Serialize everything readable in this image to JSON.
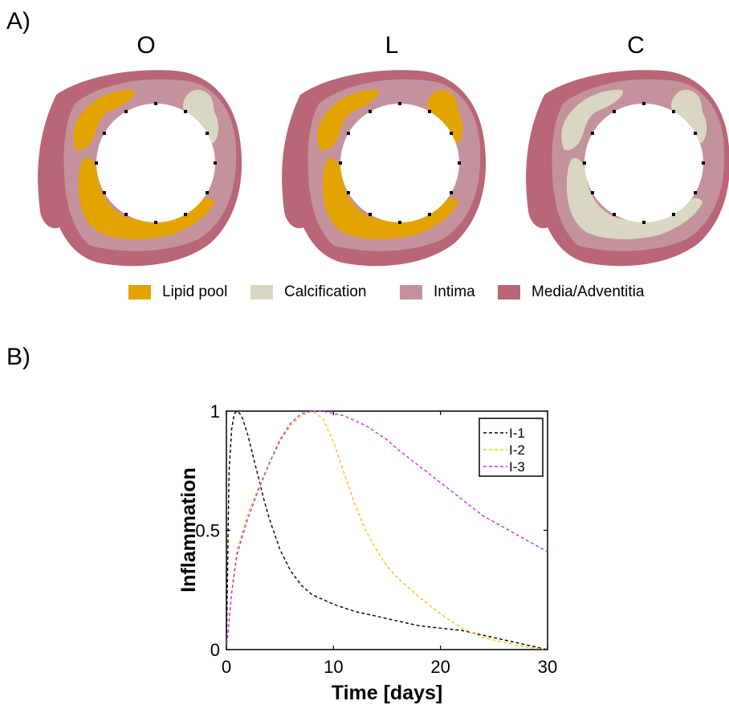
{
  "figure": {
    "panel_a_label": "A)",
    "panel_b_label": "B)"
  },
  "panel_a": {
    "vessels": [
      {
        "title": "O",
        "plaque_1_type": "lipid",
        "plaque_2_type": "calcification",
        "plaque_3_type": "lipid"
      },
      {
        "title": "L",
        "plaque_1_type": "lipid",
        "plaque_2_type": "lipid",
        "plaque_3_type": "lipid"
      },
      {
        "title": "C",
        "plaque_1_type": "calcification",
        "plaque_2_type": "calcification",
        "plaque_3_type": "calcification"
      }
    ],
    "legend": [
      {
        "label": "Lipid pool",
        "color": "#E3A300"
      },
      {
        "label": "Calcification",
        "color": "#D9D7C2"
      },
      {
        "label": "Intima",
        "color": "#C4929C"
      },
      {
        "label": "Media/Adventitia",
        "color": "#B96676"
      }
    ],
    "colors": {
      "lipid": "#E3A300",
      "calcification": "#D9D7C2",
      "intima": "#C4929C",
      "media": "#B96676",
      "lumen": "#FFFFFF"
    }
  },
  "chart_data": {
    "type": "line",
    "xlabel": "Time [days]",
    "ylabel": "Inflammation",
    "xlim": [
      0,
      30
    ],
    "ylim": [
      0,
      1
    ],
    "xticks": [
      0,
      10,
      20,
      30
    ],
    "yticks": [
      0,
      0.5,
      1
    ],
    "xtick_labels": [
      "0",
      "10",
      "20",
      "30"
    ],
    "ytick_labels": [
      "0",
      "0.5",
      "1"
    ],
    "grid": false,
    "legend_position": "top-right",
    "line_style": "dashed",
    "series": [
      {
        "name": "I-1",
        "color": "#000000",
        "x": [
          0,
          0.25,
          0.5,
          0.75,
          1,
          1.25,
          1.5,
          2,
          2.5,
          3,
          3.5,
          4,
          5,
          6,
          7,
          8,
          9,
          10,
          12,
          14,
          16,
          18,
          20,
          22,
          24,
          26,
          28,
          30
        ],
        "y": [
          0,
          0.75,
          0.93,
          0.99,
          1.0,
          0.99,
          0.97,
          0.9,
          0.81,
          0.72,
          0.63,
          0.55,
          0.42,
          0.33,
          0.27,
          0.23,
          0.21,
          0.19,
          0.16,
          0.14,
          0.12,
          0.1,
          0.09,
          0.08,
          0.06,
          0.04,
          0.02,
          0
        ]
      },
      {
        "name": "I-2",
        "color": "#F2C40E",
        "x": [
          0,
          0.5,
          1,
          2,
          3,
          4,
          5,
          6,
          7,
          8,
          9,
          10,
          11,
          12,
          13,
          14,
          15,
          16,
          18,
          20,
          22,
          24,
          26,
          28,
          30
        ],
        "y": [
          0,
          0.25,
          0.42,
          0.57,
          0.68,
          0.78,
          0.87,
          0.94,
          0.98,
          1.0,
          0.97,
          0.87,
          0.74,
          0.61,
          0.5,
          0.42,
          0.35,
          0.3,
          0.22,
          0.15,
          0.09,
          0.05,
          0.03,
          0.01,
          0
        ]
      },
      {
        "name": "I-3",
        "color": "#C032E0",
        "x": [
          0,
          0.5,
          1,
          2,
          3,
          4,
          5,
          6,
          7,
          8,
          9,
          10,
          11,
          12,
          13,
          14,
          15,
          16,
          18,
          20,
          22,
          24,
          26,
          28,
          30
        ],
        "y": [
          0,
          0.24,
          0.4,
          0.55,
          0.67,
          0.78,
          0.88,
          0.95,
          0.99,
          1.0,
          1.0,
          0.99,
          0.98,
          0.96,
          0.94,
          0.91,
          0.88,
          0.84,
          0.77,
          0.7,
          0.63,
          0.56,
          0.51,
          0.46,
          0.41
        ]
      }
    ]
  }
}
